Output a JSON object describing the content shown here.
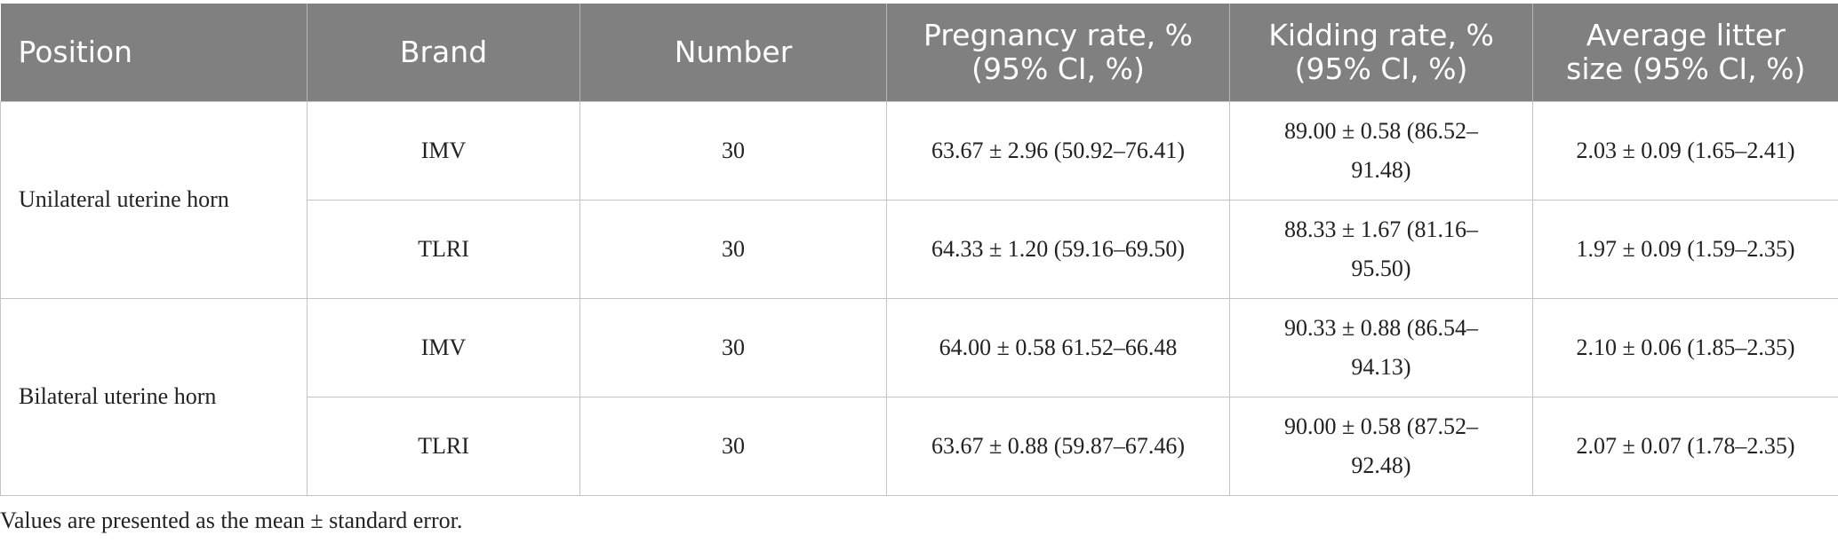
{
  "table": {
    "headers": {
      "position": "Position",
      "brand": "Brand",
      "number": "Number",
      "pregnancy_line1": "Pregnancy rate, %",
      "pregnancy_line2": "(95% CI, %)",
      "kidding_line1": "Kidding rate, %",
      "kidding_line2": "(95% CI, %)",
      "litter_line1": "Average litter",
      "litter_line2": "size (95% CI, %)"
    },
    "groups": [
      {
        "position": "Unilateral uterine horn",
        "rows": [
          {
            "brand": "IMV",
            "number": "30",
            "pregnancy": "63.67 ± 2.96 (50.92–76.41)",
            "kidding_line1": "89.00 ± 0.58 (86.52–",
            "kidding_line2": "91.48)",
            "litter": "2.03 ± 0.09 (1.65–2.41)"
          },
          {
            "brand": "TLRI",
            "number": "30",
            "pregnancy": "64.33 ± 1.20 (59.16–69.50)",
            "kidding_line1": "88.33 ± 1.67 (81.16–",
            "kidding_line2": "95.50)",
            "litter": "1.97 ± 0.09 (1.59–2.35)"
          }
        ]
      },
      {
        "position": "Bilateral uterine horn",
        "rows": [
          {
            "brand": "IMV",
            "number": "30",
            "pregnancy": "64.00 ± 0.58 61.52–66.48",
            "kidding_line1": "90.33 ± 0.88 (86.54–",
            "kidding_line2": "94.13)",
            "litter": "2.10 ± 0.06 (1.85–2.35)"
          },
          {
            "brand": "TLRI",
            "number": "30",
            "pregnancy": "63.67 ± 0.88 (59.87–67.46)",
            "kidding_line1": "90.00 ± 0.58 (87.52–",
            "kidding_line2": "92.48)",
            "litter": "2.07 ± 0.07 (1.78–2.35)"
          }
        ]
      }
    ]
  },
  "footnote": "Values are presented as the mean ± standard error.",
  "colors": {
    "header_bg": "#808080",
    "header_text": "#ffffff",
    "grid": "#c4c4c4",
    "body_text": "#222222"
  }
}
